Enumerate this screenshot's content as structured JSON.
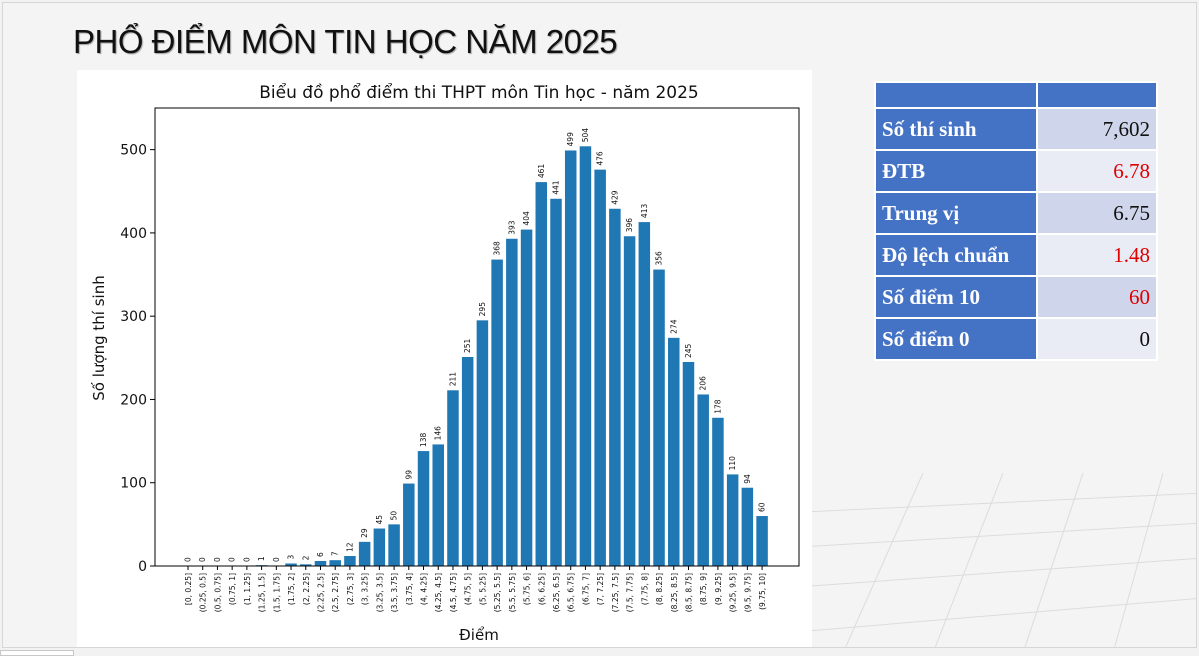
{
  "page": {
    "title": "PHỔ ĐIỂM MÔN TIN HỌC NĂM 2025"
  },
  "chart_data": {
    "type": "bar",
    "title": "Biểu đồ phổ điểm thi THPT môn Tin học - năm 2025",
    "xlabel": "Điểm",
    "ylabel": "Số lượng thí sinh",
    "ylim": [
      0,
      550
    ],
    "yticks": [
      0,
      100,
      200,
      300,
      400,
      500
    ],
    "grid": false,
    "bar_color": "#1f77b4",
    "categories": [
      "[0, 0.25]",
      "(0.25, 0.5]",
      "(0.5, 0.75]",
      "(0.75, 1]",
      "(1, 1.25]",
      "(1.25, 1.5]",
      "(1.5, 1.75]",
      "(1.75, 2]",
      "(2, 2.25]",
      "(2.25, 2.5]",
      "(2.5, 2.75]",
      "(2.75, 3]",
      "(3, 3.25]",
      "(3.25, 3.5]",
      "(3.5, 3.75]",
      "(3.75, 4]",
      "(4, 4.25]",
      "(4.25, 4.5]",
      "(4.5, 4.75]",
      "(4.75, 5]",
      "(5, 5.25]",
      "(5.25, 5.5]",
      "(5.5, 5.75]",
      "(5.75, 6]",
      "(6, 6.25]",
      "(6.25, 6.5]",
      "(6.5, 6.75]",
      "(6.75, 7]",
      "(7, 7.25]",
      "(7.25, 7.5]",
      "(7.5, 7.75]",
      "(7.75, 8]",
      "(8, 8.25]",
      "(8.25, 8.5]",
      "(8.5, 8.75]",
      "(8.75, 9]",
      "(9, 9.25]",
      "(9.25, 9.5]",
      "(9.5, 9.75]",
      "(9.75, 10]"
    ],
    "values": [
      0,
      0,
      0,
      0,
      0,
      1,
      0,
      3,
      2,
      6,
      7,
      12,
      29,
      45,
      50,
      99,
      138,
      146,
      211,
      251,
      295,
      368,
      393,
      404,
      461,
      441,
      499,
      504,
      476,
      429,
      396,
      413,
      356,
      274,
      245,
      206,
      178,
      110,
      94,
      60
    ]
  },
  "stats": {
    "rows": [
      {
        "label": "Số thí sinh",
        "value": "7,602",
        "color": "#111111"
      },
      {
        "label": "ĐTB",
        "value": "6.78",
        "color": "#e00000"
      },
      {
        "label": "Trung vị",
        "value": "6.75",
        "color": "#111111"
      },
      {
        "label": "Độ lệch chuẩn",
        "value": "1.48",
        "color": "#e00000"
      },
      {
        "label": "Số điểm 10",
        "value": "60",
        "color": "#e00000"
      },
      {
        "label": "Số điểm 0",
        "value": "0",
        "color": "#111111"
      }
    ]
  }
}
